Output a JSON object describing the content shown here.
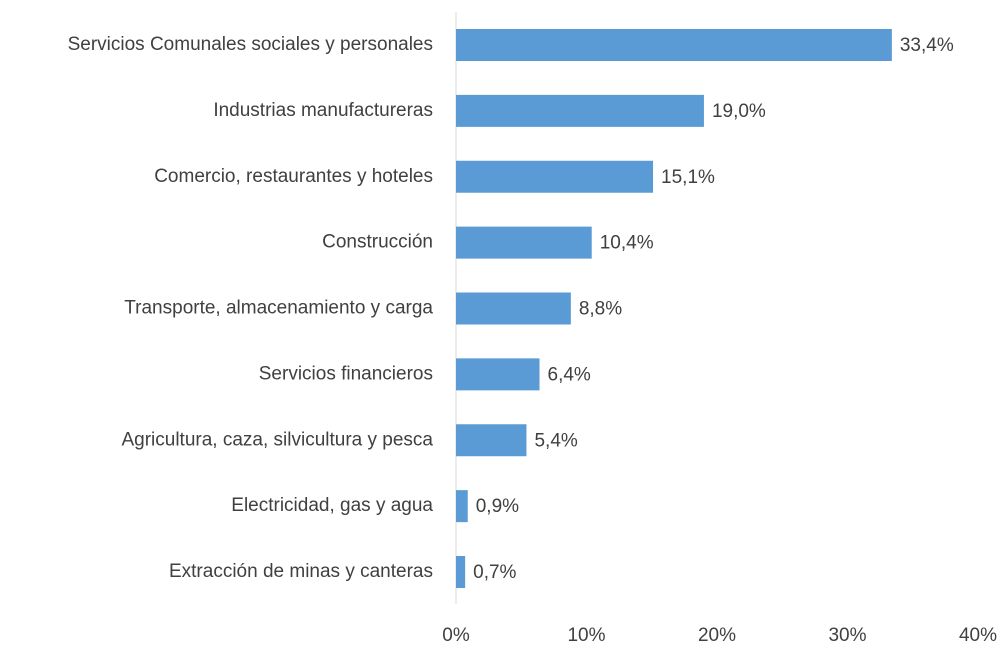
{
  "chart_data": {
    "type": "barh",
    "categories": [
      "Servicios Comunales sociales y personales",
      "Industrias manufactureras",
      "Comercio, restaurantes y hoteles",
      "Construcción",
      "Transporte, almacenamiento y carga",
      "Servicios financieros",
      "Agricultura, caza, silvicultura y pesca",
      "Electricidad, gas y agua",
      "Extracción de minas y canteras"
    ],
    "values": [
      33.4,
      19.0,
      15.1,
      10.4,
      8.8,
      6.4,
      5.4,
      0.9,
      0.7
    ],
    "value_labels": [
      "33,4%",
      "19,0%",
      "15,1%",
      "10,4%",
      "8,8%",
      "6,4%",
      "5,4%",
      "0,9%",
      "0,7%"
    ],
    "color": "#5b9bd5",
    "xlim": [
      0,
      40
    ],
    "xticks": [
      {
        "value": 0,
        "label": "0%"
      },
      {
        "value": 10,
        "label": "10%"
      },
      {
        "value": 20,
        "label": "20%"
      },
      {
        "value": 30,
        "label": "30%"
      },
      {
        "value": 40,
        "label": "40%"
      }
    ],
    "grid": false
  }
}
